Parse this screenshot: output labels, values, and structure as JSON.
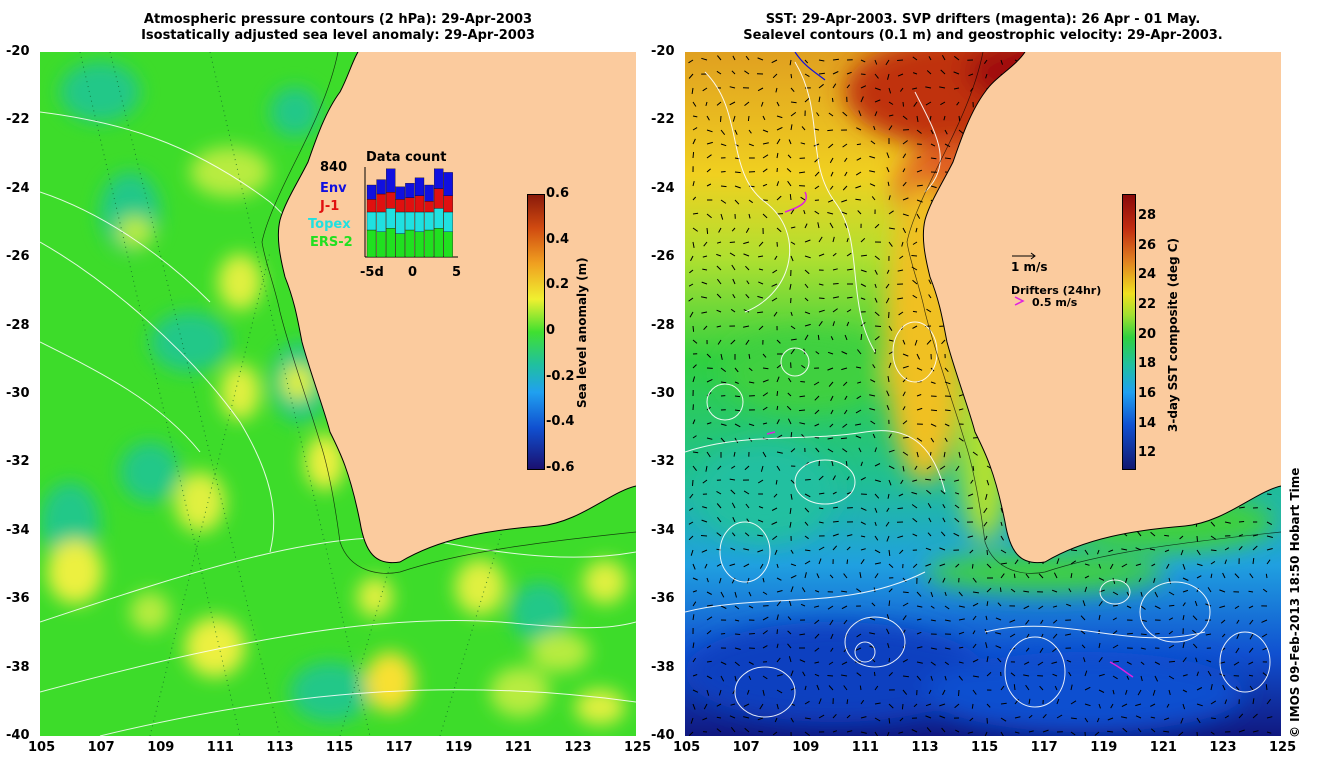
{
  "left_panel": {
    "title_line1": "Atmospheric pressure contours (2 hPa): 29-Apr-2003",
    "title_line2": "Isostatically adjusted sea level anomaly: 29-Apr-2003",
    "colorbar": {
      "label": "Sea level anomaly (m)",
      "ticks": [
        "0.6",
        "0.4",
        "0.2",
        "0",
        "-0.2",
        "-0.4",
        "-0.6"
      ],
      "range": [
        -0.6,
        0.6
      ]
    },
    "inset": {
      "title": "Data count",
      "max_count": "840",
      "legend": [
        {
          "name": "Env",
          "color": "#1010e0"
        },
        {
          "name": "J-1",
          "color": "#e01010"
        },
        {
          "name": "Topex",
          "color": "#20e0e0"
        },
        {
          "name": "ERS-2",
          "color": "#20e020"
        }
      ],
      "xticks": [
        "-5d",
        "0",
        "5"
      ],
      "bars": [
        {
          "ers2": 0.3,
          "topex": 0.2,
          "j1": 0.14,
          "env": 0.16
        },
        {
          "ers2": 0.28,
          "topex": 0.22,
          "j1": 0.2,
          "env": 0.16
        },
        {
          "ers2": 0.32,
          "topex": 0.22,
          "j1": 0.18,
          "env": 0.26
        },
        {
          "ers2": 0.26,
          "topex": 0.24,
          "j1": 0.14,
          "env": 0.14
        },
        {
          "ers2": 0.3,
          "topex": 0.2,
          "j1": 0.16,
          "env": 0.16
        },
        {
          "ers2": 0.28,
          "topex": 0.22,
          "j1": 0.18,
          "env": 0.2
        },
        {
          "ers2": 0.3,
          "topex": 0.2,
          "j1": 0.12,
          "env": 0.18
        },
        {
          "ers2": 0.32,
          "topex": 0.22,
          "j1": 0.22,
          "env": 0.22
        },
        {
          "ers2": 0.28,
          "topex": 0.22,
          "j1": 0.18,
          "env": 0.26
        }
      ]
    }
  },
  "right_panel": {
    "title_line1": "SST: 29-Apr-2003. SVP drifters (magenta): 26 Apr - 01 May.",
    "title_line2": "Sealevel contours (0.1 m) and geostrophic velocity: 29-Apr-2003.",
    "colorbar": {
      "label": "3-day SST composite (deg C)",
      "ticks": [
        "28",
        "26",
        "24",
        "22",
        "20",
        "18",
        "16",
        "14",
        "12"
      ],
      "range": [
        11,
        29.5
      ]
    },
    "velocity_scale_label": "1 m/s",
    "drifters_label": "Drifters (24hr)",
    "drifters_speed_label": "0.5 m/s"
  },
  "axes": {
    "lat_ticks": [
      "-20",
      "-22",
      "-24",
      "-26",
      "-28",
      "-30",
      "-32",
      "-34",
      "-36",
      "-38",
      "-40"
    ],
    "lon_ticks": [
      "105",
      "107",
      "109",
      "111",
      "113",
      "115",
      "117",
      "119",
      "121",
      "123",
      "125"
    ]
  },
  "credit": "© IMOS 09-Feb-2013 18:50 Hobart Time",
  "colors": {
    "land": "#fbcb9e",
    "sla_base": "#3ddc2a",
    "coast": "#000000",
    "contour": "#ffffff",
    "drifter": "#e020e0"
  }
}
